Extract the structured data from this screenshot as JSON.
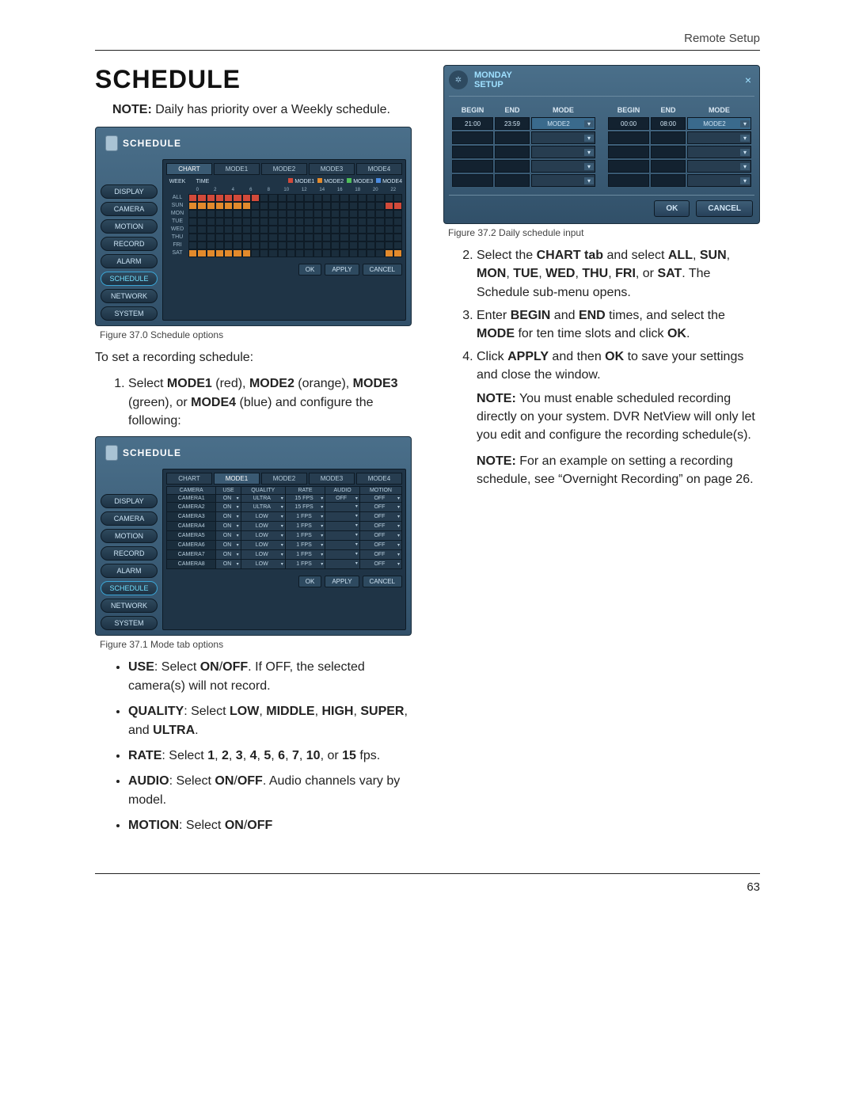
{
  "page": {
    "header_right": "Remote Setup",
    "number": "63"
  },
  "title": "SCHEDULE",
  "intro_note_label": "NOTE:",
  "intro_note_text": " Daily has priority over a Weekly schedule.",
  "fig370": {
    "caption": "Figure 37.0 Schedule options",
    "panel_title": "SCHEDULE",
    "side_items": [
      "DISPLAY",
      "CAMERA",
      "MOTION",
      "RECORD",
      "ALARM",
      "SCHEDULE",
      "NETWORK",
      "SYSTEM"
    ],
    "active_side": "SCHEDULE",
    "tabs": [
      "CHART",
      "MODE1",
      "MODE2",
      "MODE3",
      "MODE4"
    ],
    "active_tab": "CHART",
    "legend_hdr1": "WEEK",
    "legend_hdr2": "TIME",
    "legend": [
      {
        "label": "MODE1",
        "color": "#d24a3a"
      },
      {
        "label": "MODE2",
        "color": "#e28a2c"
      },
      {
        "label": "MODE3",
        "color": "#4fbf5a"
      },
      {
        "label": "MODE4",
        "color": "#4a8be2"
      }
    ],
    "hours": [
      "0",
      "2",
      "4",
      "6",
      "8",
      "10",
      "12",
      "14",
      "16",
      "18",
      "20",
      "22"
    ],
    "rows": [
      {
        "label": "ALL",
        "fills": [
          [
            "#d24a3a",
            0,
            8
          ]
        ]
      },
      {
        "label": "SUN",
        "fills": [
          [
            "#e28a2c",
            0,
            7
          ],
          [
            "#d24a3a",
            22,
            24
          ]
        ]
      },
      {
        "label": "MON",
        "fills": []
      },
      {
        "label": "TUE",
        "fills": []
      },
      {
        "label": "WED",
        "fills": []
      },
      {
        "label": "THU",
        "fills": []
      },
      {
        "label": "FRI",
        "fills": []
      },
      {
        "label": "SAT",
        "fills": [
          [
            "#e28a2c",
            0,
            7
          ],
          [
            "#e28a2c",
            22,
            24
          ]
        ]
      }
    ],
    "footer_btns": [
      "OK",
      "APPLY",
      "CANCEL"
    ]
  },
  "left_text": {
    "lead": "To set a recording schedule:",
    "step1_pre": "Select ",
    "step1_m1": "MODE1",
    "step1_m1c": " (red), ",
    "step1_m2": "MODE2",
    "step1_m2c": " (orange), ",
    "step1_m3": "MODE3",
    "step1_m3c": " (green), or ",
    "step1_m4": "MODE4",
    "step1_m4c": " (blue) and configure the following:"
  },
  "fig371": {
    "caption": "Figure 37.1 Mode tab options",
    "panel_title": "SCHEDULE",
    "side_items": [
      "DISPLAY",
      "CAMERA",
      "MOTION",
      "RECORD",
      "ALARM",
      "SCHEDULE",
      "NETWORK",
      "SYSTEM"
    ],
    "active_side": "SCHEDULE",
    "tabs": [
      "CHART",
      "MODE1",
      "MODE2",
      "MODE3",
      "MODE4"
    ],
    "active_tab": "MODE1",
    "columns": [
      "CAMERA",
      "USE",
      "QUALITY",
      "RATE",
      "AUDIO",
      "MOTION"
    ],
    "rows": [
      {
        "cam": "CAMERA1",
        "use": "ON",
        "quality": "ULTRA",
        "rate": "15 FPS",
        "audio": "OFF",
        "motion": "OFF"
      },
      {
        "cam": "CAMERA2",
        "use": "ON",
        "quality": "ULTRA",
        "rate": "15 FPS",
        "audio": "",
        "motion": "OFF"
      },
      {
        "cam": "CAMERA3",
        "use": "ON",
        "quality": "LOW",
        "rate": "1 FPS",
        "audio": "",
        "motion": "OFF"
      },
      {
        "cam": "CAMERA4",
        "use": "ON",
        "quality": "LOW",
        "rate": "1 FPS",
        "audio": "",
        "motion": "OFF"
      },
      {
        "cam": "CAMERA5",
        "use": "ON",
        "quality": "LOW",
        "rate": "1 FPS",
        "audio": "",
        "motion": "OFF"
      },
      {
        "cam": "CAMERA6",
        "use": "ON",
        "quality": "LOW",
        "rate": "1 FPS",
        "audio": "",
        "motion": "OFF"
      },
      {
        "cam": "CAMERA7",
        "use": "ON",
        "quality": "LOW",
        "rate": "1 FPS",
        "audio": "",
        "motion": "OFF"
      },
      {
        "cam": "CAMERA8",
        "use": "ON",
        "quality": "LOW",
        "rate": "1 FPS",
        "audio": "",
        "motion": "OFF"
      }
    ],
    "footer_btns": [
      "OK",
      "APPLY",
      "CANCEL"
    ]
  },
  "bullets": {
    "use_l": "USE",
    "use_t": ": Select ",
    "use_b1": "ON",
    "use_s": "/",
    "use_b2": "OFF",
    "use_t2": ". If OFF, the selected camera(s) will not record.",
    "q_l": "QUALITY",
    "q_t": ": Select ",
    "q_b1": "LOW",
    "q_c": ", ",
    "q_b2": "MIDDLE",
    "q_b3": "HIGH",
    "q_b4": "SUPER",
    "q_and": ", and ",
    "q_b5": "ULTRA",
    "q_end": ".",
    "r_l": "RATE",
    "r_t": ": Select ",
    "r_vals": [
      "1",
      "2",
      "3",
      "4",
      "5",
      "6",
      "7",
      "10"
    ],
    "r_or": ", or ",
    "r_last": "15",
    "r_end": " fps.",
    "a_l": "AUDIO",
    "a_t": ": Select ",
    "a_b1": "ON",
    "a_s": "/",
    "a_b2": "OFF",
    "a_t2": ". Audio channels vary by model.",
    "m_l": "MOTION",
    "m_t": ": Select ",
    "m_b1": "ON",
    "m_s": "/",
    "m_b2": "OFF"
  },
  "fig372": {
    "caption": "Figure 37.2 Daily schedule input",
    "title_line1": "MONDAY",
    "title_line2": "SETUP",
    "cols": [
      "BEGIN",
      "END",
      "MODE"
    ],
    "left_rows": [
      {
        "begin": "21:00",
        "end": "23:59",
        "mode": "MODE2",
        "active": true
      },
      {
        "begin": "",
        "end": "",
        "mode": ""
      },
      {
        "begin": "",
        "end": "",
        "mode": ""
      },
      {
        "begin": "",
        "end": "",
        "mode": ""
      },
      {
        "begin": "",
        "end": "",
        "mode": ""
      }
    ],
    "right_rows": [
      {
        "begin": "00:00",
        "end": "08:00",
        "mode": "MODE2",
        "active": true
      },
      {
        "begin": "",
        "end": "",
        "mode": ""
      },
      {
        "begin": "",
        "end": "",
        "mode": ""
      },
      {
        "begin": "",
        "end": "",
        "mode": ""
      },
      {
        "begin": "",
        "end": "",
        "mode": ""
      }
    ],
    "ok": "OK",
    "cancel": "CANCEL"
  },
  "right_text": {
    "s2a": "Select the ",
    "s2b": "CHART tab",
    "s2c": " and select ",
    "s2d": "ALL",
    "s2e": ", ",
    "s2f": "SUN",
    "s2g": "MON",
    "s2h": "TUE",
    "s2i": "WED",
    "s2j": "THU",
    "s2k": "FRI",
    "s2l": "SAT",
    "s2m": ". The Schedule sub-menu opens.",
    "s2or": ", or ",
    "s3a": "Enter ",
    "s3b": "BEGIN",
    "s3c": " and ",
    "s3d": "END",
    "s3e": " times, and select the ",
    "s3f": "MODE",
    "s3g": " for ten time slots and click ",
    "s3h": "OK",
    "s3i": ".",
    "s4a": "Click ",
    "s4b": "APPLY",
    "s4c": " and then ",
    "s4d": "OK",
    "s4e": " to save your settings and close the window.",
    "n1l": "NOTE:",
    "n1t": " You must enable scheduled recording directly on your system. DVR NetView will only let you edit and configure the recording schedule(s).",
    "n2l": "NOTE:",
    "n2t": " For an example on setting a recording schedule, see “Overnight Recording” on page 26."
  }
}
